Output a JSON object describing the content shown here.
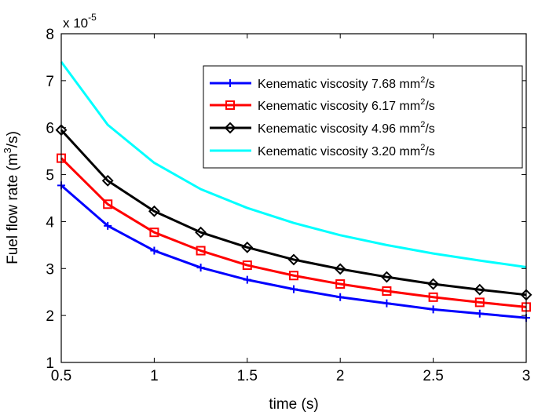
{
  "chart_data": {
    "type": "line",
    "xlabel": "time (s)",
    "ylabel_parts": [
      "Fuel flow rate (m",
      "3",
      "/s)"
    ],
    "y_multiplier": "x 10",
    "y_multiplier_exp": "-5",
    "xlim": [
      0.5,
      3
    ],
    "ylim": [
      1,
      8
    ],
    "xticks": [
      0.5,
      1,
      1.5,
      2,
      2.5,
      3
    ],
    "xtick_labels": [
      "0.5",
      "1",
      "1.5",
      "2",
      "2.5",
      "3"
    ],
    "yticks": [
      1,
      2,
      3,
      4,
      5,
      6,
      7,
      8
    ],
    "ytick_labels": [
      "1",
      "2",
      "3",
      "4",
      "5",
      "6",
      "7",
      "8"
    ],
    "grid": false,
    "legend_position": "top-right",
    "x": [
      0.5,
      0.75,
      1.0,
      1.25,
      1.5,
      1.75,
      2.0,
      2.25,
      2.5,
      2.75,
      3.0
    ],
    "series": [
      {
        "name": "Kenematic viscosity 7.68 mm2/s",
        "label_main": "Kenematic viscosity 7.68 mm",
        "label_sup": "2",
        "label_tail": "/s",
        "color": "#0000ff",
        "marker": "plus",
        "values": [
          4.77,
          3.91,
          3.38,
          3.02,
          2.76,
          2.56,
          2.39,
          2.26,
          2.13,
          2.04,
          1.95
        ]
      },
      {
        "name": "Kenematic viscosity 6.17 mm2/s",
        "label_main": "Kenematic viscosity 6.17 mm",
        "label_sup": "2",
        "label_tail": "/s",
        "color": "#ff0000",
        "marker": "square",
        "values": [
          5.35,
          4.37,
          3.77,
          3.38,
          3.07,
          2.85,
          2.67,
          2.52,
          2.39,
          2.28,
          2.18
        ]
      },
      {
        "name": "Kenematic viscosity 4.96 mm2/s",
        "label_main": "Kenematic viscosity  4.96 mm",
        "label_sup": "2",
        "label_tail": "/s",
        "color": "#000000",
        "marker": "diamond",
        "values": [
          5.95,
          4.87,
          4.22,
          3.77,
          3.45,
          3.19,
          2.99,
          2.82,
          2.67,
          2.55,
          2.44
        ]
      },
      {
        "name": "Kenematic viscosity 3.20 mm2/s",
        "label_main": "Kenematic viscosity  3.20 mm",
        "label_sup": "2",
        "label_tail": "/s",
        "color": "#00ffff",
        "marker": "none",
        "values": [
          7.4,
          6.06,
          5.25,
          4.69,
          4.29,
          3.97,
          3.71,
          3.5,
          3.32,
          3.17,
          3.03
        ]
      }
    ]
  }
}
